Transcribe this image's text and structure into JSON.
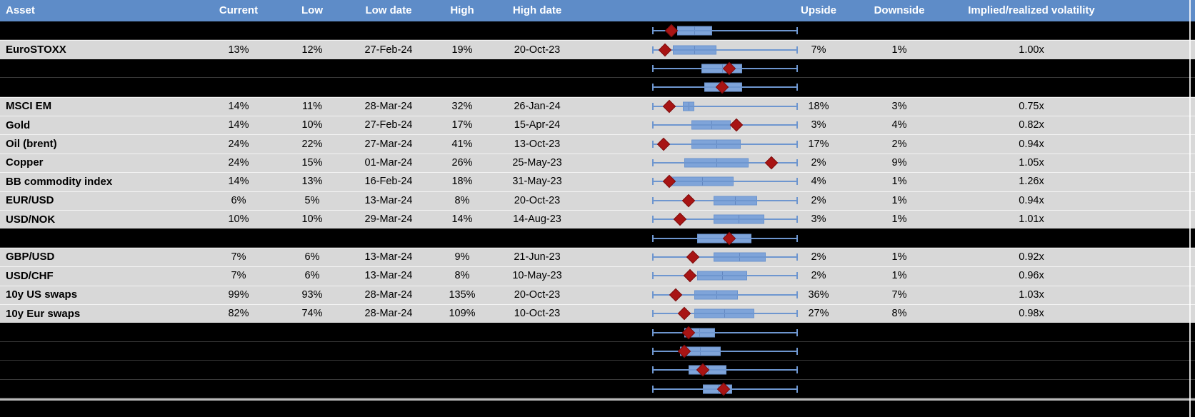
{
  "header": {
    "columns": [
      "Asset",
      "Current",
      "Low",
      "Low date",
      "High",
      "High date",
      "Upside",
      "Downside",
      "Implied/realized volatility"
    ]
  },
  "colors": {
    "header_bg": "#5E8CC8",
    "header_text": "#FFFFFF",
    "data_row_bg": "#D8D8D8",
    "blank_row_bg": "#000000",
    "box_fill": "#7FA4D9",
    "box_border": "#6B94CE",
    "whisker": "#6E96CF",
    "marker": "#A81414",
    "divider": "#B9B9B9",
    "text": "#000000"
  },
  "chart_data": {
    "type": "table",
    "description": "Asset implied-volatility table; each row has a horizontal box-whisker plot normalized to the asset's 1y low-high range (whiskers = full range 0..1, blue box = interquartile band, red diamond = current level).",
    "columns": [
      "Asset",
      "Current",
      "Low",
      "Low date",
      "High",
      "High date",
      "Range plot",
      "Upside",
      "Downside",
      "Implied/realized volatility"
    ],
    "rows": [
      {
        "kind": "blank",
        "box": [
          0.17,
          0.41
        ],
        "marker": 0.13
      },
      {
        "kind": "data",
        "asset": "EuroSTOXX",
        "current": "13%",
        "low": "12%",
        "low_date": "27-Feb-24",
        "high": "19%",
        "high_date": "20-Oct-23",
        "upside": "7%",
        "downside": "1%",
        "ratio": "1.00x",
        "box": [
          0.14,
          0.44
        ],
        "marker": 0.09
      },
      {
        "kind": "blank",
        "box": [
          0.34,
          0.62
        ],
        "marker": 0.53
      },
      {
        "kind": "blank",
        "box": [
          0.36,
          0.62
        ],
        "marker": 0.48
      },
      {
        "kind": "data",
        "asset": "MSCI EM",
        "current": "14%",
        "low": "11%",
        "low_date": "28-Mar-24",
        "high": "32%",
        "high_date": "26-Jan-24",
        "upside": "18%",
        "downside": "3%",
        "ratio": "0.75x",
        "box": [
          0.21,
          0.29
        ],
        "marker": 0.12
      },
      {
        "kind": "data",
        "asset": "Gold",
        "current": "14%",
        "low": "10%",
        "low_date": "27-Feb-24",
        "high": "17%",
        "high_date": "15-Apr-24",
        "upside": "3%",
        "downside": "4%",
        "ratio": "0.82x",
        "box": [
          0.27,
          0.54
        ],
        "marker": 0.58
      },
      {
        "kind": "data",
        "asset": "Oil (brent)",
        "current": "24%",
        "low": "22%",
        "low_date": "27-Mar-24",
        "high": "41%",
        "high_date": "13-Oct-23",
        "upside": "17%",
        "downside": "2%",
        "ratio": "0.94x",
        "box": [
          0.27,
          0.61
        ],
        "marker": 0.08
      },
      {
        "kind": "data",
        "asset": "Copper",
        "current": "24%",
        "low": "15%",
        "low_date": "01-Mar-24",
        "high": "26%",
        "high_date": "25-May-23",
        "upside": "2%",
        "downside": "9%",
        "ratio": "1.05x",
        "box": [
          0.22,
          0.66
        ],
        "marker": 0.82
      },
      {
        "kind": "data",
        "asset": "BB commodity index",
        "current": "14%",
        "low": "13%",
        "low_date": "16-Feb-24",
        "high": "18%",
        "high_date": "31-May-23",
        "upside": "4%",
        "downside": "1%",
        "ratio": "1.26x",
        "box": [
          0.13,
          0.56
        ],
        "marker": 0.12
      },
      {
        "kind": "data",
        "asset": "EUR/USD",
        "current": "6%",
        "low": "5%",
        "low_date": "13-Mar-24",
        "high": "8%",
        "high_date": "20-Oct-23",
        "upside": "2%",
        "downside": "1%",
        "ratio": "0.94x",
        "box": [
          0.42,
          0.72
        ],
        "marker": 0.25
      },
      {
        "kind": "data",
        "asset": "USD/NOK",
        "current": "10%",
        "low": "10%",
        "low_date": "29-Mar-24",
        "high": "14%",
        "high_date": "14-Aug-23",
        "upside": "3%",
        "downside": "1%",
        "ratio": "1.01x",
        "box": [
          0.42,
          0.77
        ],
        "marker": 0.19
      },
      {
        "kind": "blank",
        "box": [
          0.31,
          0.68
        ],
        "marker": 0.53
      },
      {
        "kind": "data",
        "asset": "GBP/USD",
        "current": "7%",
        "low": "6%",
        "low_date": "13-Mar-24",
        "high": "9%",
        "high_date": "21-Jun-23",
        "upside": "2%",
        "downside": "1%",
        "ratio": "0.92x",
        "box": [
          0.42,
          0.78
        ],
        "marker": 0.28
      },
      {
        "kind": "data",
        "asset": "USD/CHF",
        "current": "7%",
        "low": "6%",
        "low_date": "13-Mar-24",
        "high": "8%",
        "high_date": "10-May-23",
        "upside": "2%",
        "downside": "1%",
        "ratio": "0.96x",
        "box": [
          0.31,
          0.65
        ],
        "marker": 0.26
      },
      {
        "kind": "data",
        "asset": "10y US swaps",
        "current": "99%",
        "low": "93%",
        "low_date": "28-Mar-24",
        "high": "135%",
        "high_date": "20-Oct-23",
        "upside": "36%",
        "downside": "7%",
        "ratio": "1.03x",
        "box": [
          0.29,
          0.59
        ],
        "marker": 0.16
      },
      {
        "kind": "data",
        "asset": "10y Eur swaps",
        "current": "82%",
        "low": "74%",
        "low_date": "28-Mar-24",
        "high": "109%",
        "high_date": "10-Oct-23",
        "upside": "27%",
        "downside": "8%",
        "ratio": "0.98x",
        "box": [
          0.29,
          0.7
        ],
        "marker": 0.22
      },
      {
        "kind": "blank",
        "box": [
          0.22,
          0.43
        ],
        "marker": 0.25
      },
      {
        "kind": "blank",
        "box": [
          0.19,
          0.47
        ],
        "marker": 0.22
      },
      {
        "kind": "blank",
        "box": [
          0.25,
          0.51
        ],
        "marker": 0.35
      },
      {
        "kind": "blank",
        "box": [
          0.35,
          0.55
        ],
        "marker": 0.49
      }
    ]
  }
}
